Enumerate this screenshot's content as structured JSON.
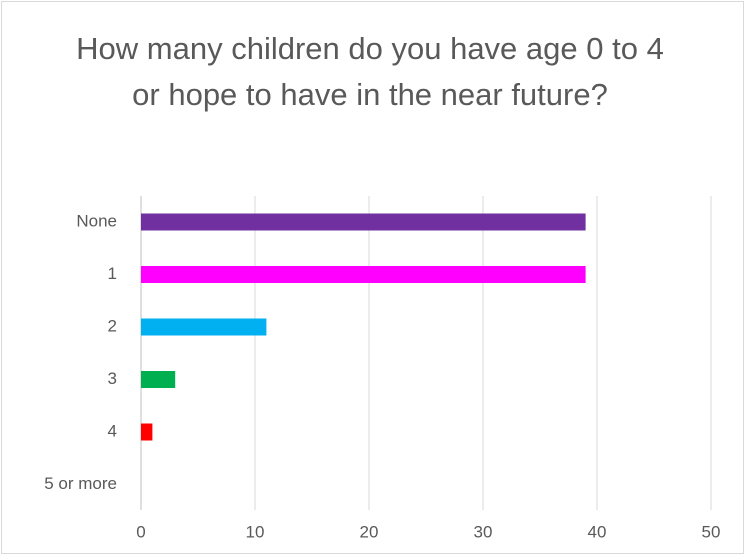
{
  "chart_data": {
    "type": "bar",
    "orientation": "horizontal",
    "title": "How many children do you have age 0 to 4 or hope to have in the near future?",
    "categories": [
      "None",
      "1",
      "2",
      "3",
      "4",
      "5 or more"
    ],
    "values": [
      39,
      39,
      11,
      3,
      1,
      0
    ],
    "colors": [
      "#7030a0",
      "#ff00ff",
      "#00b0f0",
      "#00b050",
      "#ff0000",
      "#ffc000"
    ],
    "xlim": [
      0,
      50
    ],
    "x_ticks": [
      0,
      10,
      20,
      30,
      40,
      50
    ],
    "grid": "vertical",
    "legend": "none"
  }
}
